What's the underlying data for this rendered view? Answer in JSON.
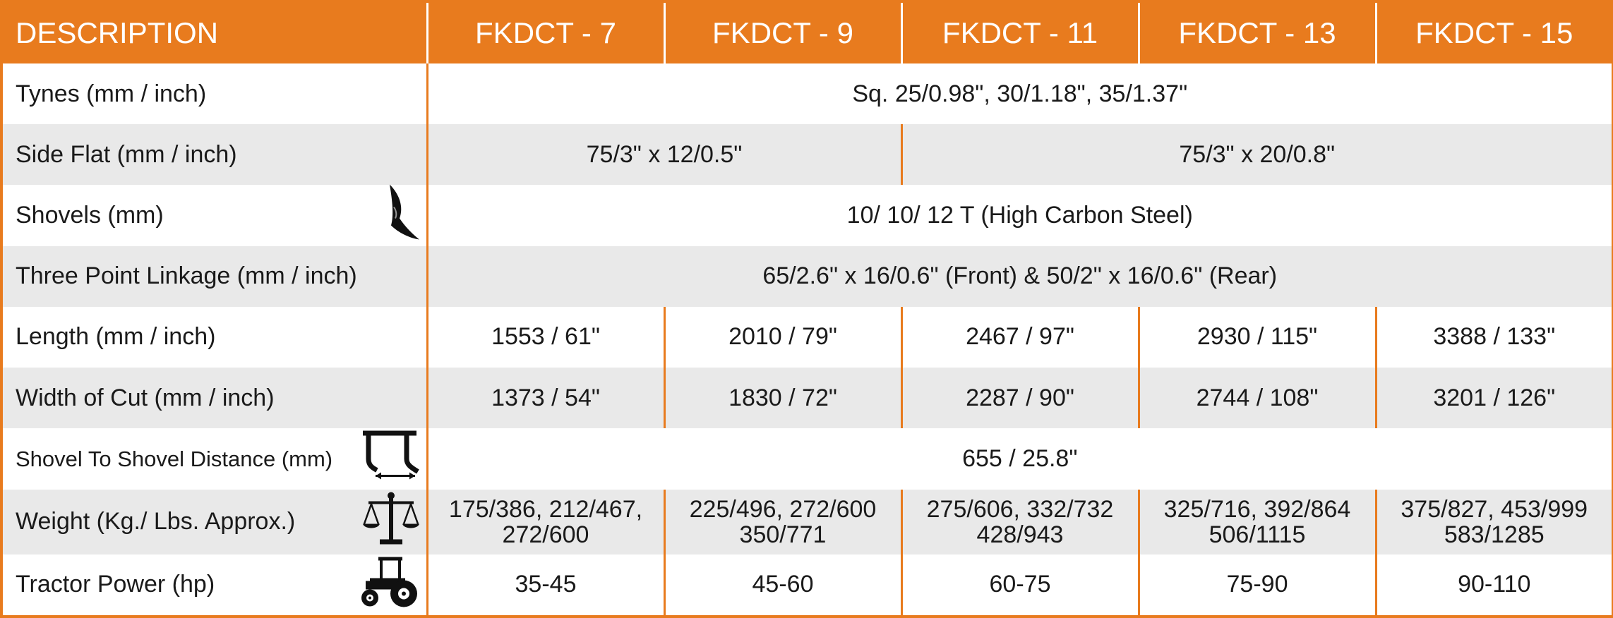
{
  "headers": {
    "description": "DESCRIPTION",
    "models": [
      "FKDCT - 7",
      "FKDCT - 9",
      "FKDCT - 11",
      "FKDCT - 13",
      "FKDCT - 15"
    ]
  },
  "rows": {
    "tynes": {
      "label": "Tynes (mm / inch)",
      "value": "Sq. 25/0.98\",  30/1.18\", 35/1.37\""
    },
    "side_flat": {
      "label": "Side Flat (mm / inch)",
      "values": [
        "75/3\" x 12/0.5\"",
        "75/3\" x 20/0.8\""
      ]
    },
    "shovels": {
      "label": "Shovels (mm)",
      "icon": "shovel-icon",
      "value": "10/ 10/ 12 T (High Carbon Steel)"
    },
    "three_point_linkage": {
      "label": "Three Point Linkage (mm / inch)",
      "value": "65/2.6\" x 16/0.6\" (Front) & 50/2\" x 16/0.6\" (Rear)"
    },
    "length": {
      "label": "Length (mm / inch)",
      "values": [
        "1553 / 61\"",
        "2010 / 79\"",
        "2467 / 97\"",
        "2930 / 115\"",
        "3388 / 133\""
      ]
    },
    "width_of_cut": {
      "label": "Width of Cut (mm / inch)",
      "values": [
        "1373 / 54\"",
        "1830 / 72\"",
        "2287 / 90\"",
        "2744 / 108\"",
        "3201 / 126\""
      ]
    },
    "shovel_distance": {
      "label": "Shovel To Shovel Distance (mm)",
      "icon": "shovel-distance-icon",
      "value": "655 / 25.8\""
    },
    "weight": {
      "label": "Weight (Kg./ Lbs. Approx.)",
      "icon": "balance-scale-icon",
      "values": [
        [
          "175/386, 212/467,",
          "272/600"
        ],
        [
          "225/496, 272/600",
          "350/771"
        ],
        [
          "275/606, 332/732",
          "428/943"
        ],
        [
          "325/716, 392/864",
          "506/1115"
        ],
        [
          "375/827, 453/999",
          "583/1285"
        ]
      ]
    },
    "tractor_power": {
      "label": "Tractor Power (hp)",
      "icon": "tractor-icon",
      "values": [
        "35-45",
        "45-60",
        "60-75",
        "75-90",
        "90-110"
      ]
    }
  },
  "colors": {
    "accent": "#e87b1e",
    "row_alt": "#e9e9e9",
    "text": "#1a1a1a",
    "header_text": "#ffffff"
  }
}
